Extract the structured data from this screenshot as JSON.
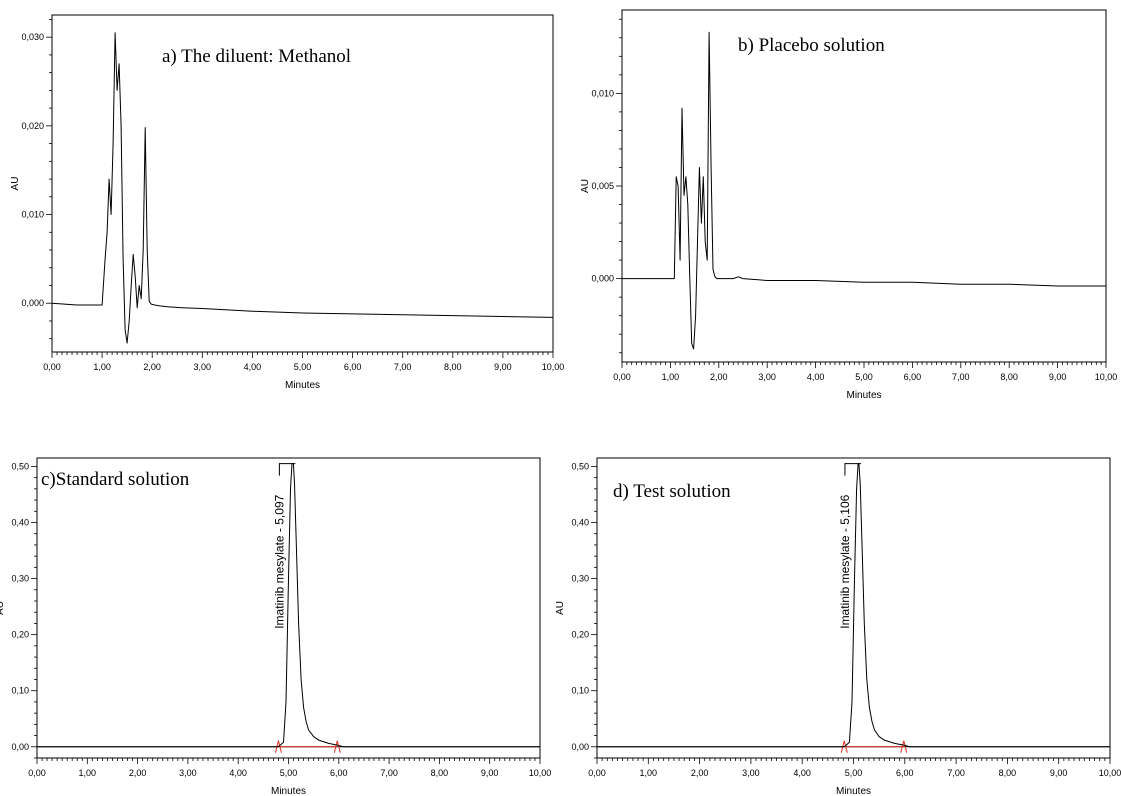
{
  "chart_data": [
    {
      "type": "line",
      "title": "a) The diluent: Methanol",
      "xlabel": "Minutes",
      "ylabel": "AU",
      "xlim": [
        0,
        10
      ],
      "ylim": [
        -0.0055,
        0.0325
      ],
      "xticks": [
        0,
        1,
        2,
        3,
        4,
        5,
        6,
        7,
        8,
        9,
        10
      ],
      "xtick_labels": [
        "0,00",
        "1,00",
        "2,00",
        "3,00",
        "4,00",
        "5,00",
        "6,00",
        "7,00",
        "8,00",
        "9,00",
        "10,00"
      ],
      "yticks": [
        0,
        0.01,
        0.02,
        0.03
      ],
      "ytick_labels": [
        "0,000",
        "0,010",
        "0,020",
        "0,030"
      ],
      "series": [
        {
          "color": "#000000",
          "x": [
            0,
            0.5,
            1.0,
            1.06,
            1.1,
            1.14,
            1.18,
            1.22,
            1.26,
            1.3,
            1.34,
            1.38,
            1.42,
            1.46,
            1.5,
            1.54,
            1.58,
            1.62,
            1.66,
            1.7,
            1.74,
            1.78,
            1.82,
            1.86,
            1.9,
            1.94,
            1.98,
            2.05,
            2.15,
            2.3,
            2.6,
            3.0,
            4.0,
            5.0,
            6.0,
            7.0,
            8.0,
            9.0,
            10.0
          ],
          "y": [
            0.0,
            -0.0002,
            -0.0002,
            0.005,
            0.008,
            0.014,
            0.01,
            0.018,
            0.0305,
            0.024,
            0.027,
            0.02,
            0.005,
            -0.003,
            -0.0045,
            -0.002,
            0.002,
            0.0055,
            0.003,
            -0.0005,
            0.002,
            0.0005,
            0.006,
            0.0198,
            0.006,
            0.0002,
            -0.0001,
            -0.0002,
            -0.0003,
            -0.0004,
            -0.0005,
            -0.0006,
            -0.0009,
            -0.0011,
            -0.0012,
            -0.0013,
            -0.0014,
            -0.0015,
            -0.0016
          ]
        }
      ]
    },
    {
      "type": "line",
      "title": "b) Placebo solution",
      "xlabel": "Minutes",
      "ylabel": "AU",
      "xlim": [
        0,
        10
      ],
      "ylim": [
        -0.0045,
        0.0145
      ],
      "xticks": [
        0,
        1,
        2,
        3,
        4,
        5,
        6,
        7,
        8,
        9,
        10
      ],
      "xtick_labels": [
        "0,00",
        "1,00",
        "2,00",
        "3,00",
        "4,00",
        "5,00",
        "6,00",
        "7,00",
        "8,00",
        "9,00",
        "10,00"
      ],
      "yticks": [
        0,
        0.005,
        0.01
      ],
      "ytick_labels": [
        "0,000",
        "0,005",
        "0,010"
      ],
      "series": [
        {
          "color": "#000000",
          "x": [
            0,
            0.5,
            1.0,
            1.08,
            1.12,
            1.16,
            1.2,
            1.24,
            1.28,
            1.32,
            1.36,
            1.4,
            1.44,
            1.48,
            1.52,
            1.56,
            1.6,
            1.64,
            1.68,
            1.72,
            1.76,
            1.8,
            1.84,
            1.88,
            1.92,
            1.96,
            2.0,
            2.1,
            2.3,
            2.4,
            2.5,
            3.0,
            4.0,
            5.0,
            6.0,
            7.0,
            8.0,
            9.0,
            10.0
          ],
          "y": [
            0.0,
            0.0,
            0.0,
            0.0,
            0.0055,
            0.005,
            0.001,
            0.0092,
            0.0045,
            0.0055,
            0.004,
            0.0,
            -0.0035,
            -0.0038,
            -0.002,
            0.002,
            0.006,
            0.003,
            0.0055,
            0.002,
            0.001,
            0.0133,
            0.006,
            0.0005,
            0.0001,
            0.0,
            0.0,
            0.0,
            0.0,
            0.0001,
            0.0,
            -0.0001,
            -0.0001,
            -0.0002,
            -0.0002,
            -0.0003,
            -0.0003,
            -0.0004,
            -0.0004
          ]
        }
      ]
    },
    {
      "type": "line",
      "title": "c)Standard solution",
      "xlabel": "Minutes",
      "ylabel": "AU",
      "xlim": [
        0,
        10
      ],
      "ylim": [
        -0.02,
        0.515
      ],
      "xticks": [
        0,
        1,
        2,
        3,
        4,
        5,
        6,
        7,
        8,
        9,
        10
      ],
      "xtick_labels": [
        "0,00",
        "1,00",
        "2,00",
        "3,00",
        "4,00",
        "5,00",
        "6,00",
        "7,00",
        "8,00",
        "9,00",
        "10,00"
      ],
      "yticks": [
        0,
        0.1,
        0.2,
        0.3,
        0.4,
        0.5
      ],
      "ytick_labels": [
        "0,00",
        "0,10",
        "0,20",
        "0,30",
        "0,40",
        "0,50"
      ],
      "peak_label": "Imatinib mesylate - 5,097",
      "peak_rt": 5.097,
      "integration_start": 4.8,
      "integration_end": 5.97,
      "series": [
        {
          "color": "#000000",
          "x": [
            0,
            4.5,
            4.8,
            4.9,
            4.95,
            5.0,
            5.04,
            5.07,
            5.097,
            5.12,
            5.15,
            5.2,
            5.25,
            5.3,
            5.35,
            5.4,
            5.5,
            5.6,
            5.8,
            5.97,
            6.1,
            7.0,
            8.0,
            10.0
          ],
          "y": [
            0.0,
            0.0,
            0.0,
            0.008,
            0.08,
            0.3,
            0.46,
            0.505,
            0.505,
            0.47,
            0.38,
            0.22,
            0.12,
            0.07,
            0.045,
            0.03,
            0.018,
            0.012,
            0.006,
            0.003,
            0.0,
            0.0,
            0.0,
            0.0
          ]
        }
      ]
    },
    {
      "type": "line",
      "title": "d) Test solution",
      "xlabel": "Minutes",
      "ylabel": "AU",
      "xlim": [
        0,
        10
      ],
      "ylim": [
        -0.02,
        0.515
      ],
      "xticks": [
        0,
        1,
        2,
        3,
        4,
        5,
        6,
        7,
        8,
        9,
        10
      ],
      "xtick_labels": [
        "0,00",
        "1,00",
        "2,00",
        "3,00",
        "4,00",
        "5,00",
        "6,00",
        "7,00",
        "8,00",
        "9,00",
        "10,00"
      ],
      "yticks": [
        0,
        0.1,
        0.2,
        0.3,
        0.4,
        0.5
      ],
      "ytick_labels": [
        "0,00",
        "0,10",
        "0,20",
        "0,30",
        "0,40",
        "0,50"
      ],
      "peak_label": "Imatinib mesylate - 5,106",
      "peak_rt": 5.106,
      "integration_start": 4.82,
      "integration_end": 5.98,
      "series": [
        {
          "color": "#000000",
          "x": [
            0,
            4.5,
            4.82,
            4.92,
            4.97,
            5.02,
            5.06,
            5.09,
            5.106,
            5.13,
            5.16,
            5.21,
            5.26,
            5.31,
            5.36,
            5.41,
            5.5,
            5.6,
            5.8,
            5.98,
            6.1,
            7.0,
            8.0,
            10.0
          ],
          "y": [
            0.0,
            0.0,
            0.0,
            0.008,
            0.08,
            0.3,
            0.46,
            0.505,
            0.505,
            0.47,
            0.38,
            0.22,
            0.12,
            0.07,
            0.045,
            0.03,
            0.018,
            0.012,
            0.006,
            0.003,
            0.0,
            0.0,
            0.0,
            0.0
          ]
        }
      ]
    }
  ],
  "colors": {
    "trace": "#000000",
    "integration_marker": "#e03020"
  }
}
